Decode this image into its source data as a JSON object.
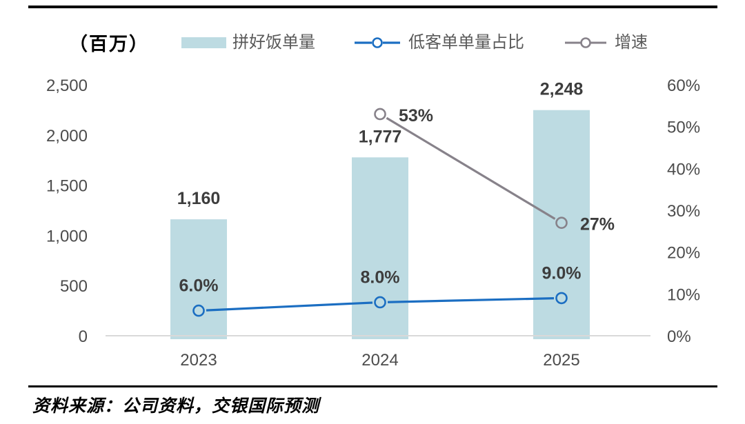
{
  "unit_label": "（百万）",
  "source_note": "资料来源：公司资料，交银国际预测",
  "colors": {
    "bar": "#bddbe2",
    "blue_line": "#1b6ec2",
    "gray_line": "#87828a",
    "axis_line": "#d9d9d9",
    "tick_text": "#4c4c4c",
    "data_label_text": "#3d3d3d",
    "legend_text": "#595959",
    "rule": "#000000"
  },
  "legend": [
    {
      "label": "拼好饭单量",
      "key": "pinhaofan-orders",
      "swatch": "bar"
    },
    {
      "label": "低客单单量占比",
      "key": "low-ticket-order-share",
      "swatch": "line-blue"
    },
    {
      "label": "增速",
      "key": "growth-rate",
      "swatch": "line-gray"
    }
  ],
  "chart_data": {
    "type": "combo",
    "categories": [
      "2023",
      "2024",
      "2025"
    ],
    "series": [
      {
        "name": "拼好饭单量",
        "key": "pinhaofan-orders",
        "type": "bar",
        "axis": "left",
        "values": [
          1160,
          1777,
          2248
        ],
        "labels": [
          "1,160",
          "1,777",
          "2,248"
        ]
      },
      {
        "name": "低客单单量占比",
        "key": "low-ticket-order-share",
        "type": "line",
        "axis": "right",
        "color_key": "blue_line",
        "label_position": "above",
        "values": [
          6.0,
          8.0,
          9.0
        ],
        "labels": [
          "6.0%",
          "8.0%",
          "9.0%"
        ]
      },
      {
        "name": "增速",
        "key": "growth-rate",
        "type": "line",
        "axis": "right",
        "color_key": "gray_line",
        "label_position": "right",
        "values": [
          null,
          53,
          27
        ],
        "labels": [
          null,
          "53%",
          "27%"
        ]
      }
    ],
    "left_axis": {
      "unit": "（百万）",
      "min": 0,
      "max": 2500,
      "ticks": [
        {
          "label": "2,500",
          "value": 2500
        },
        {
          "label": "2,000",
          "value": 2000
        },
        {
          "label": "1,500",
          "value": 1500
        },
        {
          "label": "1,000",
          "value": 1000
        },
        {
          "label": "500",
          "value": 500
        },
        {
          "label": "0",
          "value": 0
        }
      ]
    },
    "right_axis": {
      "min": 0,
      "max": 60,
      "ticks": [
        {
          "label": "60%",
          "value": 60
        },
        {
          "label": "50%",
          "value": 50
        },
        {
          "label": "40%",
          "value": 40
        },
        {
          "label": "30%",
          "value": 30
        },
        {
          "label": "20%",
          "value": 20
        },
        {
          "label": "10%",
          "value": 10
        },
        {
          "label": "0%",
          "value": 0
        }
      ]
    },
    "grid": false,
    "legend_position": "top"
  }
}
